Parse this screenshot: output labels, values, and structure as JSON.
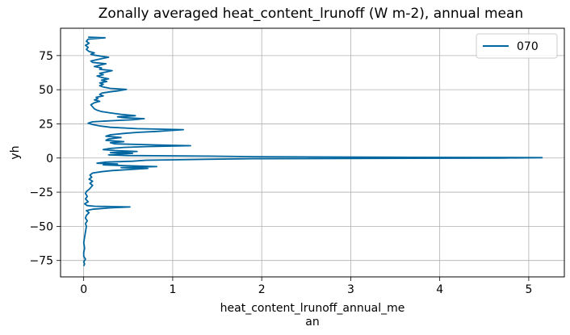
{
  "chart_data": {
    "type": "line",
    "title": "Zonally averaged heat_content_lrunoff (W m-2), annual mean",
    "xlabel": [
      "heat_content_lrunoff_annual_me",
      "an"
    ],
    "ylabel": "yh",
    "xlim": [
      -0.26,
      5.4
    ],
    "ylim": [
      -87,
      95
    ],
    "x_ticks": [
      0,
      1,
      2,
      3,
      4,
      5
    ],
    "x_tick_labels": [
      "0",
      "1",
      "2",
      "3",
      "4",
      "5"
    ],
    "y_ticks": [
      -75,
      -50,
      -25,
      0,
      25,
      50,
      75
    ],
    "y_tick_labels": [
      "−75",
      "−50",
      "−25",
      "0",
      "25",
      "50",
      "75"
    ],
    "grid": true,
    "legend": {
      "position": "top-right",
      "entries": [
        "070"
      ]
    },
    "series": [
      {
        "name": "070",
        "color": "#0066a0",
        "points": [
          [
            0.0,
            -79
          ],
          [
            0.01,
            -77.5
          ],
          [
            0.0,
            -76
          ],
          [
            0.02,
            -74
          ],
          [
            0.0,
            -72
          ],
          [
            0.0,
            -69
          ],
          [
            0.01,
            -66
          ],
          [
            0.0,
            -62
          ],
          [
            0.01,
            -58
          ],
          [
            0.02,
            -54
          ],
          [
            0.03,
            -50
          ],
          [
            0.02,
            -48
          ],
          [
            0.04,
            -46
          ],
          [
            0.02,
            -44
          ],
          [
            0.03,
            -42
          ],
          [
            0.06,
            -40
          ],
          [
            0.03,
            -38.5
          ],
          [
            0.1,
            -37.5
          ],
          [
            0.3,
            -36.5
          ],
          [
            0.52,
            -35.8
          ],
          [
            0.12,
            -35.3
          ],
          [
            0.04,
            -34.8
          ],
          [
            0.01,
            -33.5
          ],
          [
            0.05,
            -32
          ],
          [
            0.02,
            -30
          ],
          [
            0.04,
            -28
          ],
          [
            0.02,
            -26
          ],
          [
            0.03,
            -24.5
          ],
          [
            0.06,
            -23
          ],
          [
            0.08,
            -21.5
          ],
          [
            0.1,
            -20
          ],
          [
            0.07,
            -18.5
          ],
          [
            0.1,
            -17
          ],
          [
            0.06,
            -15.5
          ],
          [
            0.09,
            -14
          ],
          [
            0.07,
            -12.5
          ],
          [
            0.1,
            -11
          ],
          [
            0.2,
            -10
          ],
          [
            0.32,
            -9.2
          ],
          [
            0.52,
            -8.4
          ],
          [
            0.72,
            -7.6
          ],
          [
            0.42,
            -7.0
          ],
          [
            0.82,
            -6.3
          ],
          [
            0.45,
            -5.6
          ],
          [
            0.22,
            -5.0
          ],
          [
            0.38,
            -4.4
          ],
          [
            0.15,
            -3.8
          ],
          [
            0.25,
            -3.0
          ],
          [
            0.55,
            -2.3
          ],
          [
            0.7,
            -1.6
          ],
          [
            1.3,
            -1.0
          ],
          [
            1.9,
            -0.5
          ],
          [
            4.7,
            0.0
          ],
          [
            5.15,
            0.3
          ],
          [
            3.5,
            0.6
          ],
          [
            1.92,
            1.0
          ],
          [
            1.4,
            1.4
          ],
          [
            0.5,
            1.8
          ],
          [
            0.28,
            2.3
          ],
          [
            0.4,
            2.8
          ],
          [
            0.55,
            3.4
          ],
          [
            0.3,
            4.0
          ],
          [
            0.6,
            4.8
          ],
          [
            0.35,
            5.5
          ],
          [
            0.22,
            6.2
          ],
          [
            0.3,
            7.0
          ],
          [
            0.45,
            7.8
          ],
          [
            0.7,
            8.4
          ],
          [
            1.2,
            9.0
          ],
          [
            0.8,
            9.6
          ],
          [
            0.35,
            10.4
          ],
          [
            0.3,
            11.2
          ],
          [
            0.45,
            12.0
          ],
          [
            0.25,
            13.0
          ],
          [
            0.28,
            14.0
          ],
          [
            0.42,
            15.0
          ],
          [
            0.25,
            16.0
          ],
          [
            0.3,
            17.0
          ],
          [
            0.45,
            18.0
          ],
          [
            0.6,
            18.8
          ],
          [
            0.82,
            19.5
          ],
          [
            1.12,
            20.8
          ],
          [
            0.6,
            21.5
          ],
          [
            0.3,
            22.5
          ],
          [
            0.18,
            23.5
          ],
          [
            0.1,
            24.5
          ],
          [
            0.05,
            25.5
          ],
          [
            0.1,
            26.5
          ],
          [
            0.3,
            27.3
          ],
          [
            0.55,
            28.0
          ],
          [
            0.68,
            28.8
          ],
          [
            0.45,
            29.5
          ],
          [
            0.38,
            30.2
          ],
          [
            0.58,
            31.0
          ],
          [
            0.42,
            32.0
          ],
          [
            0.3,
            33.0
          ],
          [
            0.2,
            34.0
          ],
          [
            0.15,
            35.0
          ],
          [
            0.12,
            36.0
          ],
          [
            0.1,
            37.5
          ],
          [
            0.08,
            39.0
          ],
          [
            0.12,
            40.5
          ],
          [
            0.18,
            41.5
          ],
          [
            0.12,
            42.5
          ],
          [
            0.16,
            43.5
          ],
          [
            0.14,
            44.5
          ],
          [
            0.22,
            45.5
          ],
          [
            0.18,
            46.5
          ],
          [
            0.2,
            47.5
          ],
          [
            0.3,
            48.5
          ],
          [
            0.4,
            49.3
          ],
          [
            0.48,
            50.2
          ],
          [
            0.3,
            51.0
          ],
          [
            0.22,
            52.0
          ],
          [
            0.18,
            53.0
          ],
          [
            0.22,
            54.0
          ],
          [
            0.18,
            55.0
          ],
          [
            0.26,
            56.0
          ],
          [
            0.2,
            57.0
          ],
          [
            0.28,
            58.0
          ],
          [
            0.2,
            59.0
          ],
          [
            0.15,
            60.0
          ],
          [
            0.22,
            61.0
          ],
          [
            0.18,
            62.0
          ],
          [
            0.25,
            63.0
          ],
          [
            0.32,
            64.0
          ],
          [
            0.18,
            65.0
          ],
          [
            0.2,
            66.0
          ],
          [
            0.12,
            67.0
          ],
          [
            0.18,
            68.0
          ],
          [
            0.25,
            69.0
          ],
          [
            0.1,
            70.0
          ],
          [
            0.08,
            71.0
          ],
          [
            0.15,
            72.0
          ],
          [
            0.22,
            73.0
          ],
          [
            0.28,
            73.8
          ],
          [
            0.2,
            74.5
          ],
          [
            0.12,
            75.3
          ],
          [
            0.08,
            76.0
          ],
          [
            0.12,
            77.0
          ],
          [
            0.06,
            78.0
          ],
          [
            0.03,
            79.5
          ],
          [
            0.05,
            81.0
          ],
          [
            0.02,
            82.5
          ],
          [
            0.06,
            84.0
          ],
          [
            0.03,
            85.5
          ],
          [
            0.05,
            87.0
          ],
          [
            0.24,
            88.0
          ],
          [
            0.05,
            88.5
          ]
        ]
      }
    ]
  }
}
